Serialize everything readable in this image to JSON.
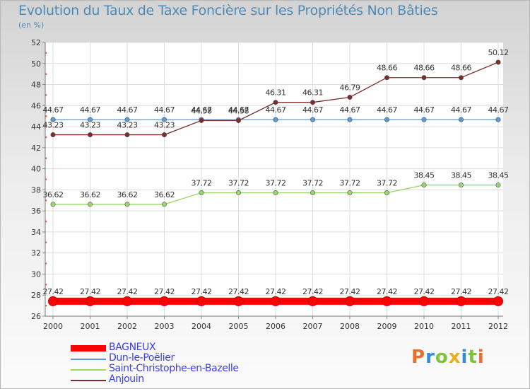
{
  "chart_data": {
    "type": "line",
    "title": "Evolution du Taux de Taxe Foncière sur les Propriétés Non Bâties",
    "subtitle": "(en %)",
    "x": [
      "2000",
      "2001",
      "2002",
      "2003",
      "2004",
      "2005",
      "2006",
      "2007",
      "2008",
      "2009",
      "2010",
      "2011",
      "2012"
    ],
    "ylim": [
      26,
      52
    ],
    "yticks": [
      "26",
      "28",
      "30",
      "32",
      "34",
      "36",
      "38",
      "40",
      "42",
      "44",
      "46",
      "48",
      "50",
      "52"
    ],
    "grid": true,
    "legend": "bottom-left",
    "series": [
      {
        "name": "BAGNEUX",
        "color": "#ff0000",
        "values": [
          27.42,
          27.42,
          27.42,
          27.42,
          27.42,
          27.42,
          27.42,
          27.42,
          27.42,
          27.42,
          27.42,
          27.42,
          27.42
        ],
        "labels": [
          "27.42",
          "27.42",
          "27.42",
          "27.42",
          "27.42",
          "27.42",
          "27.42",
          "27.42",
          "27.42",
          "27.42",
          "27.42",
          "27.42",
          "27.42"
        ]
      },
      {
        "name": "Dun-le-Poëlier",
        "color": "#5b9bd5",
        "values": [
          44.67,
          44.67,
          44.67,
          44.67,
          44.67,
          44.67,
          44.67,
          44.67,
          44.67,
          44.67,
          44.67,
          44.67,
          44.67
        ],
        "labels": [
          "44.67",
          "44.67",
          "44.67",
          "44.67",
          "44.67",
          "44.67",
          "44.67",
          "44.67",
          "44.67",
          "44.67",
          "44.67",
          "44.67",
          "44.67"
        ]
      },
      {
        "name": "Saint-Christophe-en-Bazelle",
        "color": "#99d96a",
        "values": [
          36.62,
          36.62,
          36.62,
          36.62,
          37.72,
          37.72,
          37.72,
          37.72,
          37.72,
          37.72,
          38.45,
          38.45,
          38.45
        ],
        "labels": [
          "36.62",
          "36.62",
          "36.62",
          "36.62",
          "37.72",
          "37.72",
          "37.72",
          "37.72",
          "37.72",
          "37.72",
          "38.45",
          "38.45",
          "38.45"
        ]
      },
      {
        "name": "Anjouin",
        "color": "#7b2c2c",
        "values": [
          43.23,
          43.23,
          43.23,
          43.23,
          44.58,
          44.58,
          46.31,
          46.31,
          46.79,
          48.66,
          48.66,
          48.66,
          50.12
        ],
        "labels": [
          "43.23",
          "43.23",
          "43.23",
          "43.23",
          "44.58",
          "44.58",
          "46.31",
          "46.31",
          "46.79",
          "48.66",
          "48.66",
          "48.66",
          "50.12"
        ]
      }
    ]
  },
  "logo": {
    "letters": [
      "P",
      "r",
      "o",
      "x",
      "i",
      "t",
      "i"
    ],
    "colors": [
      "#e8702a",
      "#2f8fd6",
      "#7ec43a",
      "#e8b020",
      "#2f8fd6",
      "#7ec43a",
      "#e8702a"
    ]
  }
}
